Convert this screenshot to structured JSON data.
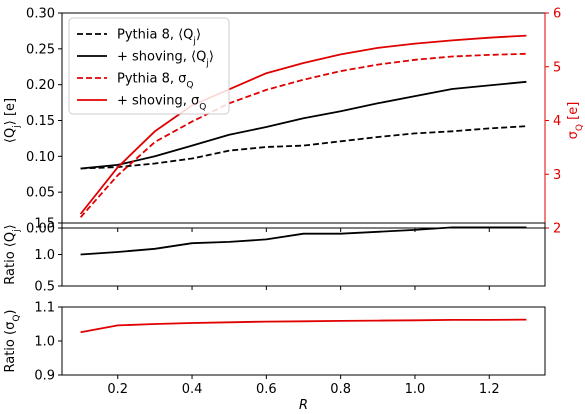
{
  "chart_data": [
    {
      "type": "line",
      "ylabel": "⟨Q_j⟩ [e]",
      "ylabel_right": "σ_Q [e]",
      "ylim": [
        0,
        0.3
      ],
      "ylim_right": [
        2,
        6
      ],
      "xlim": [
        0.05,
        1.35
      ],
      "yticks": [
        "0.00",
        "0.05",
        "0.10",
        "0.15",
        "0.20",
        "0.25",
        "0.30"
      ],
      "yticks_right": [
        "2",
        "3",
        "4",
        "5",
        "6"
      ],
      "legend_location": "upper-left",
      "legend": [
        {
          "label": "Pythia 8, ⟨Q_j⟩",
          "color": "#000000",
          "dash": true
        },
        {
          "label": "+ shoving, ⟨Q_j⟩",
          "color": "#000000",
          "dash": false
        },
        {
          "label": "Pythia 8, σ_Q",
          "color": "#e00000",
          "dash": true
        },
        {
          "label": "+ shoving, σ_Q",
          "color": "#e00000",
          "dash": false
        }
      ],
      "x": [
        0.1,
        0.2,
        0.3,
        0.4,
        0.5,
        0.6,
        0.7,
        0.8,
        0.9,
        1.0,
        1.1,
        1.2,
        1.3
      ],
      "series": [
        {
          "name": "Pythia 8, ⟨Q_j⟩",
          "axis": "left",
          "color": "#000000",
          "dash": true,
          "values": [
            0.083,
            0.085,
            0.09,
            0.097,
            0.108,
            0.113,
            0.115,
            0.121,
            0.127,
            0.132,
            0.135,
            0.139,
            0.142
          ]
        },
        {
          "name": "+ shoving, ⟨Q_j⟩",
          "axis": "left",
          "color": "#000000",
          "dash": false,
          "values": [
            0.083,
            0.088,
            0.1,
            0.115,
            0.13,
            0.141,
            0.153,
            0.163,
            0.174,
            0.184,
            0.194,
            0.199,
            0.204
          ]
        },
        {
          "name": "Pythia 8, σ_Q",
          "axis": "right",
          "color": "#e00000",
          "dash": true,
          "values": [
            2.2,
            2.98,
            3.6,
            3.98,
            4.32,
            4.57,
            4.76,
            4.92,
            5.04,
            5.13,
            5.19,
            5.22,
            5.24
          ]
        },
        {
          "name": "+ shoving, σ_Q",
          "axis": "right",
          "color": "#e00000",
          "dash": false,
          "values": [
            2.26,
            3.13,
            3.8,
            4.28,
            4.58,
            4.88,
            5.07,
            5.23,
            5.35,
            5.43,
            5.49,
            5.54,
            5.58
          ]
        }
      ]
    },
    {
      "type": "line",
      "ylabel": "Ratio ⟨Q_j⟩",
      "ylim": [
        0.5,
        1.5
      ],
      "yticks": [
        "0.5",
        "1.0",
        "1.5"
      ],
      "x": [
        0.1,
        0.2,
        0.3,
        0.4,
        0.5,
        0.6,
        0.7,
        0.8,
        0.9,
        1.0,
        1.1,
        1.2,
        1.3
      ],
      "series": [
        {
          "color": "#000000",
          "values": [
            1.0,
            1.04,
            1.09,
            1.18,
            1.2,
            1.24,
            1.33,
            1.33,
            1.36,
            1.39,
            1.43,
            1.43,
            1.43
          ]
        }
      ]
    },
    {
      "type": "line",
      "ylabel": "Ratio (σ_Q)",
      "xlabel": "R",
      "ylim": [
        0.9,
        1.1
      ],
      "yticks": [
        "0.9",
        "1.0",
        "1.1"
      ],
      "xticks": [
        "0.2",
        "0.4",
        "0.6",
        "0.8",
        "1.0",
        "1.2"
      ],
      "x": [
        0.1,
        0.2,
        0.3,
        0.4,
        0.5,
        0.6,
        0.7,
        0.8,
        0.9,
        1.0,
        1.1,
        1.2,
        1.3
      ],
      "series": [
        {
          "color": "#e00000",
          "values": [
            1.026,
            1.046,
            1.05,
            1.053,
            1.055,
            1.057,
            1.058,
            1.059,
            1.06,
            1.061,
            1.062,
            1.062,
            1.063
          ]
        }
      ]
    }
  ]
}
